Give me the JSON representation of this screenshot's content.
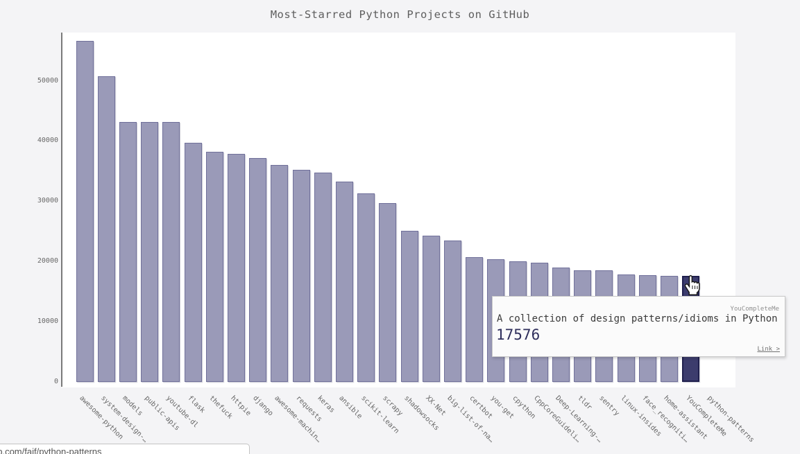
{
  "chart_data": {
    "type": "bar",
    "title": "Most-Starred Python Projects on GitHub",
    "categories": [
      "awesome-python",
      "system-design-…",
      "models",
      "public-apis",
      "youtube-dl",
      "flask",
      "thefuck",
      "httpie",
      "django",
      "awesome-machin…",
      "requests",
      "keras",
      "ansible",
      "scikit-learn",
      "scrapy",
      "shadowsocks",
      "XX-Net",
      "big-list-of-na…",
      "certbot",
      "you-get",
      "cpython",
      "CppCoreGuideli…",
      "Deep-Learning-…",
      "tldr",
      "sentry",
      "linux-insides",
      "face_recogniti…",
      "home-assistant",
      "YouCompleteMe",
      "python-patterns"
    ],
    "values": [
      56600,
      50700,
      43200,
      43150,
      43100,
      39700,
      38200,
      37900,
      37200,
      36000,
      35200,
      34700,
      33300,
      31300,
      29700,
      25100,
      24300,
      23500,
      20700,
      20400,
      20000,
      19800,
      19000,
      18550,
      18500,
      17840,
      17760,
      17610,
      17576,
      null
    ],
    "xlabel": "",
    "ylabel": "",
    "yticks": [
      0,
      10000,
      20000,
      30000,
      40000,
      50000
    ],
    "ylim": [
      0,
      58000
    ],
    "grid": false,
    "legend_position": "none",
    "highlight_index": 28,
    "bar_color": "#9a9ab8",
    "bar_border_color": "#70709a",
    "highlight_color": "#3c3c6d",
    "highlight_border_color": "#20204e"
  },
  "tooltip": {
    "series_label": "YouCompleteMe",
    "description": "A collection of design patterns/idioms in Python",
    "value": "17576",
    "link_label": "Link >"
  },
  "status_popup": {
    "url_text": "ub.com/faif/python-patterns"
  }
}
